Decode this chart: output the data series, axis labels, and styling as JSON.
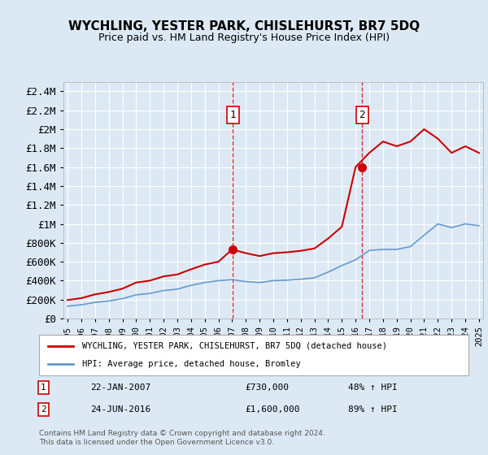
{
  "title": "WYCHLING, YESTER PARK, CHISLEHURST, BR7 5DQ",
  "subtitle": "Price paid vs. HM Land Registry's House Price Index (HPI)",
  "background_color": "#dce9f5",
  "plot_bg_color": "#dce9f5",
  "grid_color": "#ffffff",
  "ylim": [
    0,
    2500000
  ],
  "yticks": [
    0,
    200000,
    400000,
    600000,
    800000,
    1000000,
    1200000,
    1400000,
    1600000,
    1800000,
    2000000,
    2200000,
    2400000
  ],
  "xlim_start": 1995,
  "xlim_end": 2025,
  "sale1_year": 2007.06,
  "sale1_price": 730000,
  "sale1_label": "1",
  "sale1_date": "22-JAN-2007",
  "sale1_pct": "48% ↑ HPI",
  "sale2_year": 2016.48,
  "sale2_price": 1600000,
  "sale2_label": "2",
  "sale2_date": "24-JUN-2016",
  "sale2_pct": "89% ↑ HPI",
  "red_line_color": "#cc0000",
  "blue_line_color": "#6699cc",
  "legend_label_red": "WYCHLING, YESTER PARK, CHISLEHURST, BR7 5DQ (detached house)",
  "legend_label_blue": "HPI: Average price, detached house, Bromley",
  "footer": "Contains HM Land Registry data © Crown copyright and database right 2024.\nThis data is licensed under the Open Government Licence v3.0.",
  "hpi_years": [
    1995,
    1996,
    1997,
    1998,
    1999,
    2000,
    2001,
    2002,
    2003,
    2004,
    2005,
    2006,
    2007,
    2008,
    2009,
    2010,
    2011,
    2012,
    2013,
    2014,
    2015,
    2016,
    2017,
    2018,
    2019,
    2020,
    2021,
    2022,
    2023,
    2024,
    2025
  ],
  "hpi_values": [
    130000,
    145000,
    170000,
    185000,
    210000,
    250000,
    265000,
    295000,
    310000,
    350000,
    380000,
    400000,
    410000,
    390000,
    380000,
    400000,
    405000,
    415000,
    430000,
    490000,
    560000,
    620000,
    720000,
    730000,
    730000,
    760000,
    880000,
    1000000,
    960000,
    1000000,
    980000
  ],
  "red_years": [
    1995,
    1996,
    1997,
    1998,
    1999,
    2000,
    2001,
    2002,
    2003,
    2004,
    2005,
    2006,
    2007,
    2008,
    2009,
    2010,
    2011,
    2012,
    2013,
    2014,
    2015,
    2016,
    2017,
    2018,
    2019,
    2020,
    2021,
    2022,
    2023,
    2024,
    2025
  ],
  "red_values": [
    195000,
    215000,
    255000,
    280000,
    315000,
    380000,
    400000,
    445000,
    465000,
    520000,
    570000,
    600000,
    730000,
    690000,
    660000,
    690000,
    700000,
    715000,
    740000,
    845000,
    970000,
    1600000,
    1750000,
    1870000,
    1820000,
    1870000,
    2000000,
    1900000,
    1750000,
    1820000,
    1750000
  ]
}
